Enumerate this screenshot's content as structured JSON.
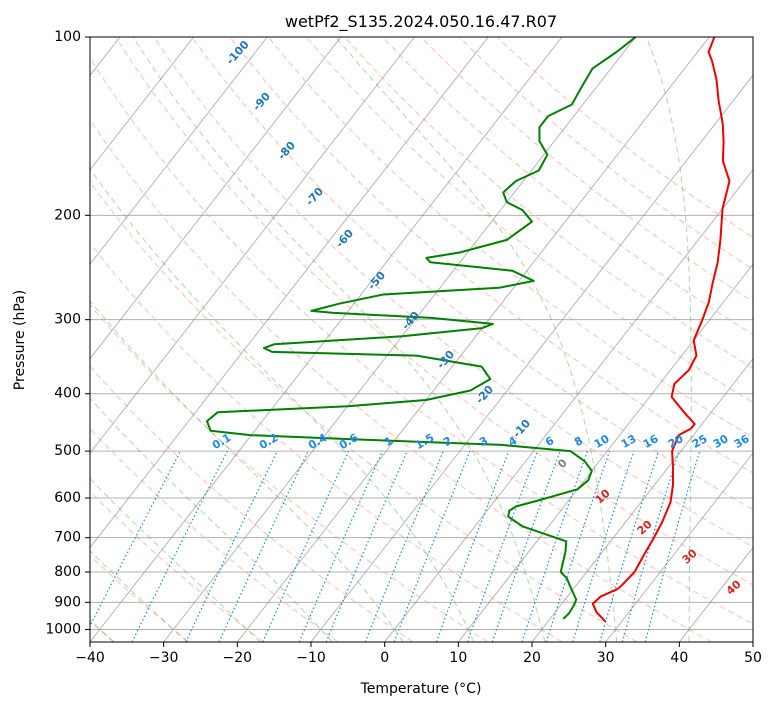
{
  "title": "wetPf2_S135.2024.050.16.47.R07",
  "colors": {
    "temperature": "#ee0000",
    "dewpoint": "#008000",
    "isotherm": "#808080",
    "dry_adiabat": "#ff8c69",
    "moist_adiabat": "#2ca02c",
    "mixing_ratio": "#1e88e5",
    "dry_label": "#d62728",
    "moist_label": "#1f77b4",
    "grid": "#b0b0b0"
  },
  "chart_data": {
    "type": "line",
    "subtype": "skew-T log-P diagram",
    "title": "wetPf2_S135.2024.050.16.47.R07",
    "xlabel": "Temperature (°C)",
    "ylabel": "Pressure (hPa)",
    "xlim": [
      -40,
      50
    ],
    "ylim": [
      1050,
      100
    ],
    "y_scale": "log",
    "x_ticks": [
      -40,
      -30,
      -20,
      -10,
      0,
      10,
      20,
      30,
      40,
      50
    ],
    "y_ticks": [
      100,
      200,
      300,
      400,
      500,
      600,
      700,
      800,
      900,
      1000
    ],
    "grid": true,
    "series": [
      {
        "role": "temperature",
        "points": [
          [
            27.8,
            970
          ],
          [
            25.6,
            935
          ],
          [
            24.2,
            905
          ],
          [
            24.5,
            880
          ],
          [
            26.0,
            855
          ],
          [
            26.2,
            840
          ],
          [
            26.5,
            800
          ],
          [
            26.0,
            750
          ],
          [
            25.5,
            700
          ],
          [
            25.0,
            660
          ],
          [
            24.0,
            610
          ],
          [
            22.5,
            570
          ],
          [
            20.5,
            530
          ],
          [
            18.8,
            500
          ],
          [
            18.0,
            470
          ],
          [
            19.0,
            458
          ],
          [
            19.0,
            450
          ],
          [
            17.0,
            435
          ],
          [
            15.0,
            420
          ],
          [
            13.0,
            405
          ],
          [
            12.0,
            385
          ],
          [
            12.5,
            365
          ],
          [
            12.0,
            345
          ],
          [
            10.0,
            325
          ],
          [
            9.0,
            300
          ],
          [
            8.0,
            280
          ],
          [
            6.5,
            260
          ],
          [
            5.0,
            240
          ],
          [
            3.0,
            220
          ],
          [
            0.0,
            195
          ],
          [
            -2.0,
            175
          ],
          [
            -5.0,
            162
          ],
          [
            -7.0,
            150
          ],
          [
            -9.0,
            140
          ],
          [
            -12.0,
            128
          ],
          [
            -14.5,
            118
          ],
          [
            -17.0,
            110
          ],
          [
            -18.5,
            106
          ],
          [
            -19.3,
            100
          ]
        ]
      },
      {
        "role": "dewpoint",
        "points": [
          [
            21.8,
            960
          ],
          [
            22.0,
            940
          ],
          [
            21.8,
            910
          ],
          [
            21.5,
            890
          ],
          [
            20.0,
            860
          ],
          [
            19.0,
            840
          ],
          [
            18.0,
            820
          ],
          [
            16.5,
            800
          ],
          [
            16.0,
            780
          ],
          [
            15.0,
            740
          ],
          [
            14.0,
            710
          ],
          [
            6.5,
            670
          ],
          [
            3.5,
            645
          ],
          [
            3.0,
            630
          ],
          [
            3.5,
            620
          ],
          [
            6.0,
            605
          ],
          [
            10.0,
            580
          ],
          [
            10.5,
            560
          ],
          [
            10.0,
            540
          ],
          [
            8.0,
            520
          ],
          [
            5.0,
            500
          ],
          [
            -5.0,
            488
          ],
          [
            -25.0,
            478
          ],
          [
            -40.0,
            470
          ],
          [
            -46.0,
            462
          ],
          [
            -47.5,
            445
          ],
          [
            -47.0,
            430
          ],
          [
            -30.0,
            420
          ],
          [
            -20.0,
            410
          ],
          [
            -15.0,
            395
          ],
          [
            -13.5,
            378
          ],
          [
            -16.0,
            360
          ],
          [
            -26.0,
            345
          ],
          [
            -46.0,
            340
          ],
          [
            -47.5,
            335
          ],
          [
            -46.5,
            330
          ],
          [
            -30.0,
            320
          ],
          [
            -20.0,
            310
          ],
          [
            -19.0,
            305
          ],
          [
            -28.0,
            298
          ],
          [
            -42.0,
            292
          ],
          [
            -45.0,
            290
          ],
          [
            -42.0,
            282
          ],
          [
            -37.0,
            272
          ],
          [
            -22.0,
            265
          ],
          [
            -18.0,
            258
          ],
          [
            -22.0,
            248
          ],
          [
            -34.0,
            240
          ],
          [
            -35.0,
            236
          ],
          [
            -31.0,
            231
          ],
          [
            -26.0,
            220
          ],
          [
            -24.5,
            205
          ],
          [
            -27.0,
            196
          ],
          [
            -30.0,
            190
          ],
          [
            -31.5,
            183
          ],
          [
            -31.0,
            175
          ],
          [
            -29.0,
            168
          ],
          [
            -29.5,
            158
          ],
          [
            -32.0,
            150
          ],
          [
            -33.5,
            142
          ],
          [
            -33.5,
            136
          ],
          [
            -31.5,
            130
          ],
          [
            -32.0,
            122
          ],
          [
            -32.5,
            113
          ],
          [
            -31.0,
            106
          ],
          [
            -30.0,
            100
          ]
        ]
      }
    ],
    "dry_adiabat_labels": [
      "10",
      "20",
      "30",
      "40"
    ],
    "moist_adiabat_labels": [
      "-100",
      "-90",
      "-80",
      "-70",
      "-60",
      "-50",
      "-40",
      "-30",
      "-20",
      "-10",
      "0"
    ],
    "mixing_ratio_labels": [
      "0.1",
      "0.2",
      "0.4",
      "0.6",
      "1",
      "1.5",
      "2",
      "3",
      "4",
      "6",
      "8",
      "10",
      "13",
      "16",
      "20",
      "25",
      "30",
      "36"
    ],
    "mixing_ratio_values": [
      0.1,
      0.2,
      0.4,
      0.6,
      1,
      1.5,
      2,
      3,
      4,
      6,
      8,
      10,
      13,
      16,
      20,
      25,
      30,
      36
    ],
    "dry_adiabat_thetas_c": [
      -60,
      -50,
      -40,
      -30,
      -20,
      -10,
      0,
      10,
      20,
      30,
      40,
      50,
      60,
      70,
      80,
      90,
      100,
      110,
      120,
      130,
      140,
      150,
      160
    ],
    "moist_adiabat_thetaw_c": [
      -100,
      -90,
      -80,
      -70,
      -60,
      -50,
      -40,
      -30,
      -20,
      -10,
      0,
      10,
      20,
      30,
      40
    ]
  }
}
